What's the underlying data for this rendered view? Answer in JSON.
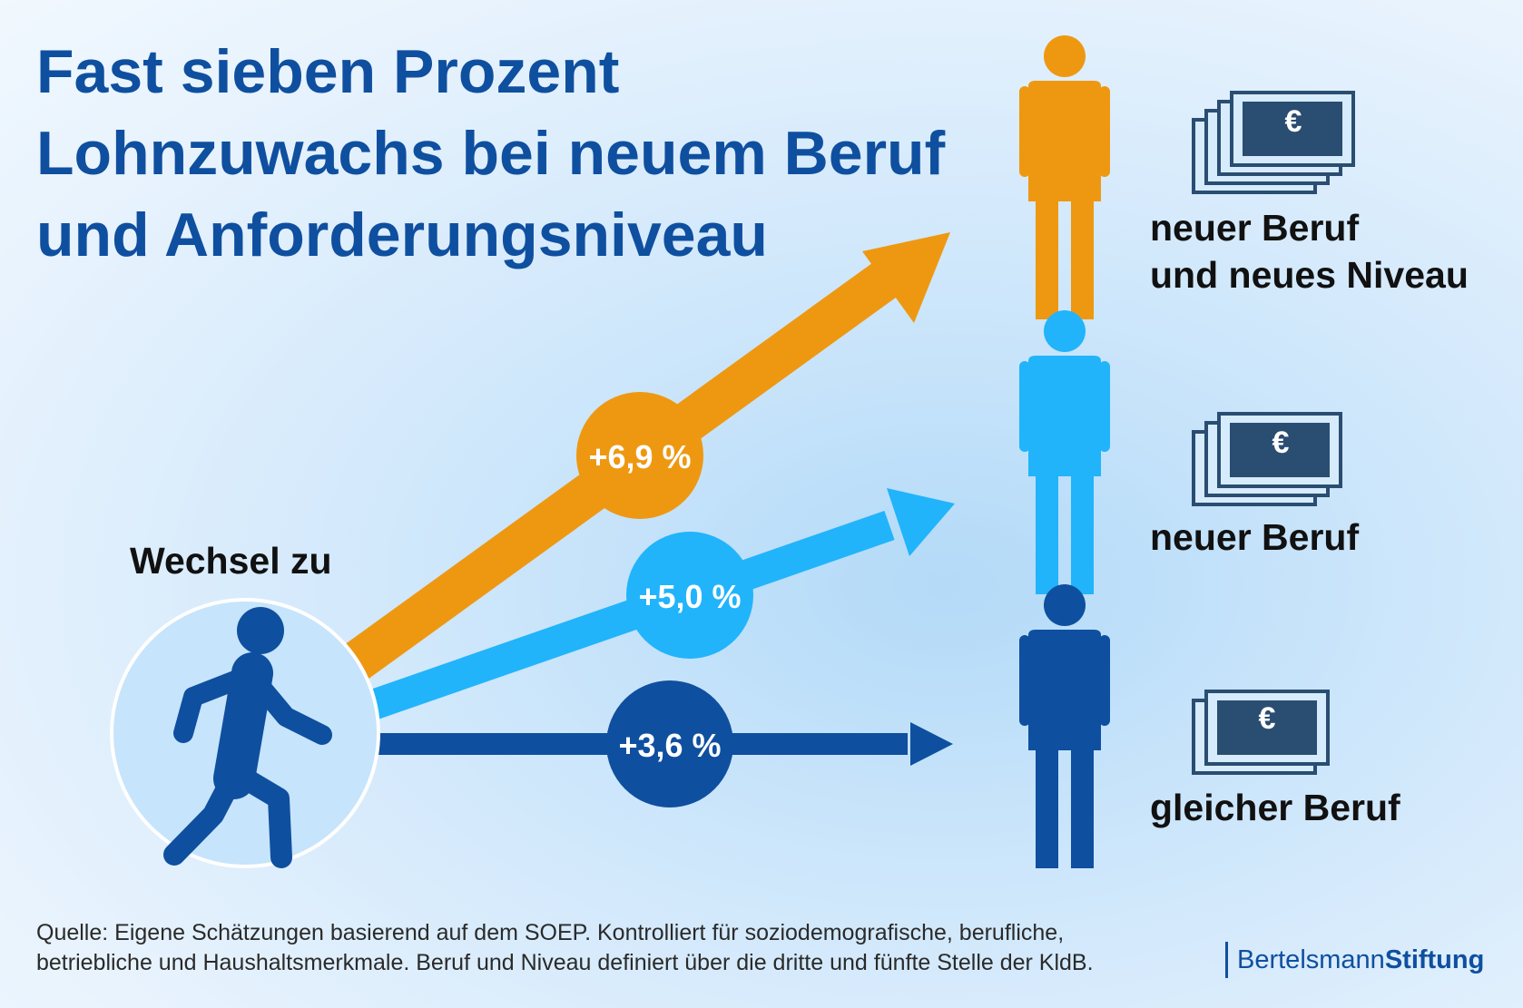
{
  "title": {
    "line1": "Fast sieben Prozent",
    "line2": "Lohnzuwachs bei neuem Beruf",
    "line3": "und Anforderungsniveau"
  },
  "start_label": "Wechsel zu",
  "outcomes": [
    {
      "value": "+6,9 %",
      "label_line1": "neuer Beruf",
      "label_line2": "und neues Niveau",
      "color": "#ee9812"
    },
    {
      "value": "+5,0 %",
      "label_line1": "neuer Beruf",
      "label_line2": "",
      "color": "#21b4fb"
    },
    {
      "value": "+3,6 %",
      "label_line1": "gleicher Beruf",
      "label_line2": "",
      "color": "#0f4f9f"
    }
  ],
  "currency_symbol": "€",
  "colors": {
    "title": "#0f4f9f",
    "orange": "#ee9812",
    "light_blue": "#21b4fb",
    "dark_blue": "#0f4f9f",
    "bill_fill": "#2a4d72"
  },
  "footer": {
    "line1": "Quelle: Eigene Schätzungen basierend auf dem SOEP. Kontrolliert für soziodemografische, berufliche,",
    "line2": "betriebliche und Haushaltsmerkmale. Beruf und Niveau definiert über die dritte und fünfte Stelle der KldB."
  },
  "brand": {
    "part1": "Bertelsmann",
    "part2": "Stiftung"
  },
  "icons": [
    "walking-person-icon",
    "person-icon",
    "money-stack-icon",
    "euro-icon"
  ]
}
